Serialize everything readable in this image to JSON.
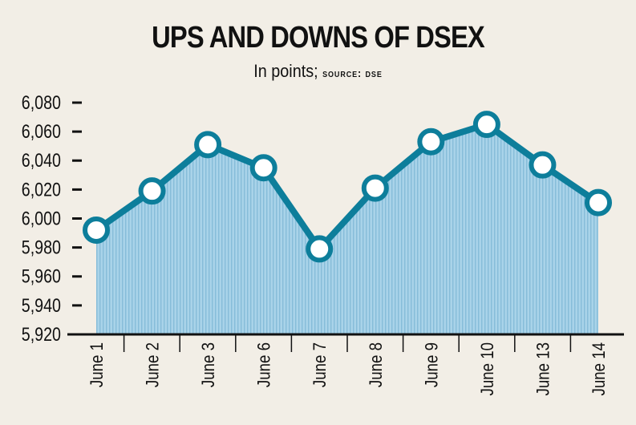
{
  "chart_data": {
    "type": "line",
    "title": "UPS AND DOWNS OF DSEX",
    "subtitle": "In points;",
    "source": "SOURCE: DSE",
    "categories": [
      "June 1",
      "June 2",
      "June 3",
      "June 6",
      "June 7",
      "June 8",
      "June 9",
      "June 10",
      "June 13",
      "June 14"
    ],
    "values": [
      5992,
      6019,
      6051,
      6035,
      5979,
      6021,
      6053,
      6065,
      6037,
      6011
    ],
    "yticks": [
      "6,080",
      "6,060",
      "6,040",
      "6,020",
      "6,000",
      "5,980",
      "5,960",
      "5,940",
      "5,920"
    ],
    "ylim": [
      5920,
      6080
    ],
    "xlabel": "",
    "ylabel": "",
    "colors": {
      "line": "#0d7e9b",
      "fill": "#a7d2e8",
      "stripe": "#8ec3de",
      "marker_fill": "#ffffff"
    }
  }
}
